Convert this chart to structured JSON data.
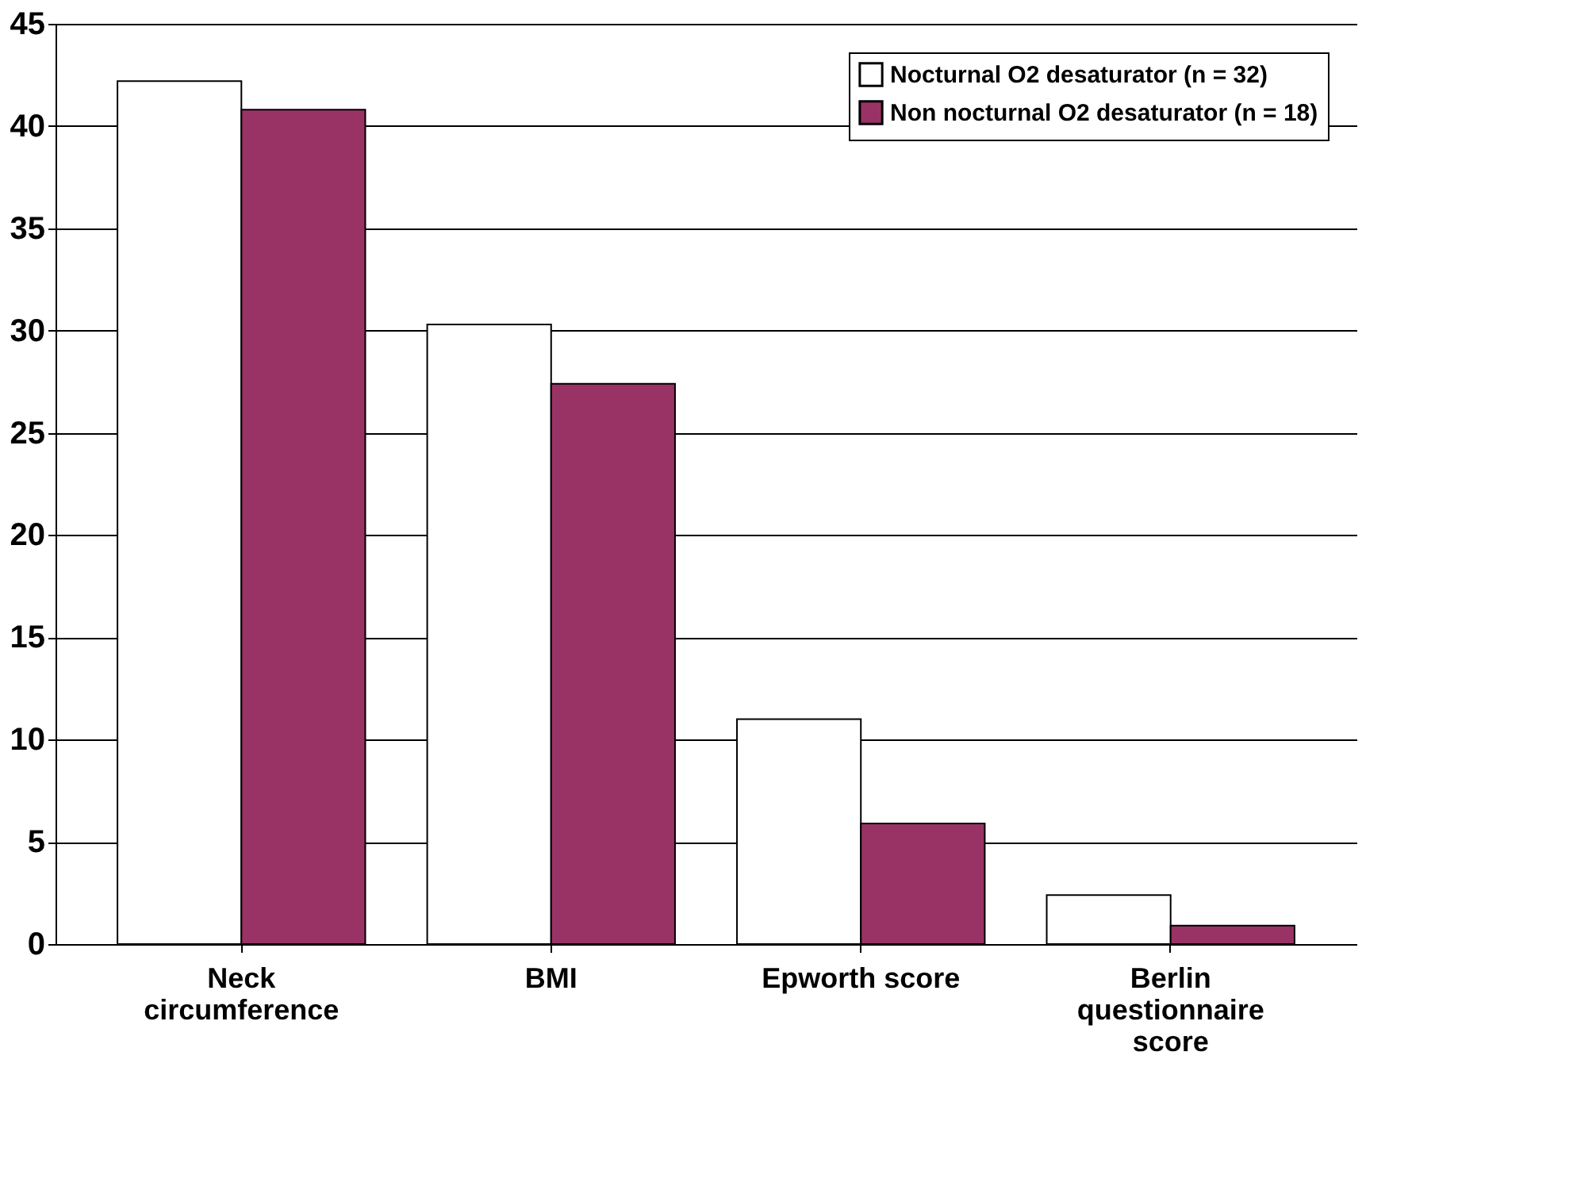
{
  "chart_data": {
    "type": "bar",
    "categories": [
      "Neck circumference",
      "BMI",
      "Epworth score",
      "Berlin questionnaire score"
    ],
    "series": [
      {
        "name": "Nocturnal O2 desaturator (n = 32)",
        "color": "#ffffff",
        "values": [
          42.2,
          30.3,
          11.0,
          2.4
        ]
      },
      {
        "name": "Non nocturnal O2 desaturator (n = 18)",
        "color": "#993366",
        "values": [
          40.8,
          27.4,
          5.9,
          0.9
        ]
      }
    ],
    "ylim": [
      0,
      45
    ],
    "yticks": [
      0,
      5,
      10,
      15,
      20,
      25,
      30,
      35,
      40,
      45
    ],
    "grid": "y",
    "legend": "top right"
  }
}
